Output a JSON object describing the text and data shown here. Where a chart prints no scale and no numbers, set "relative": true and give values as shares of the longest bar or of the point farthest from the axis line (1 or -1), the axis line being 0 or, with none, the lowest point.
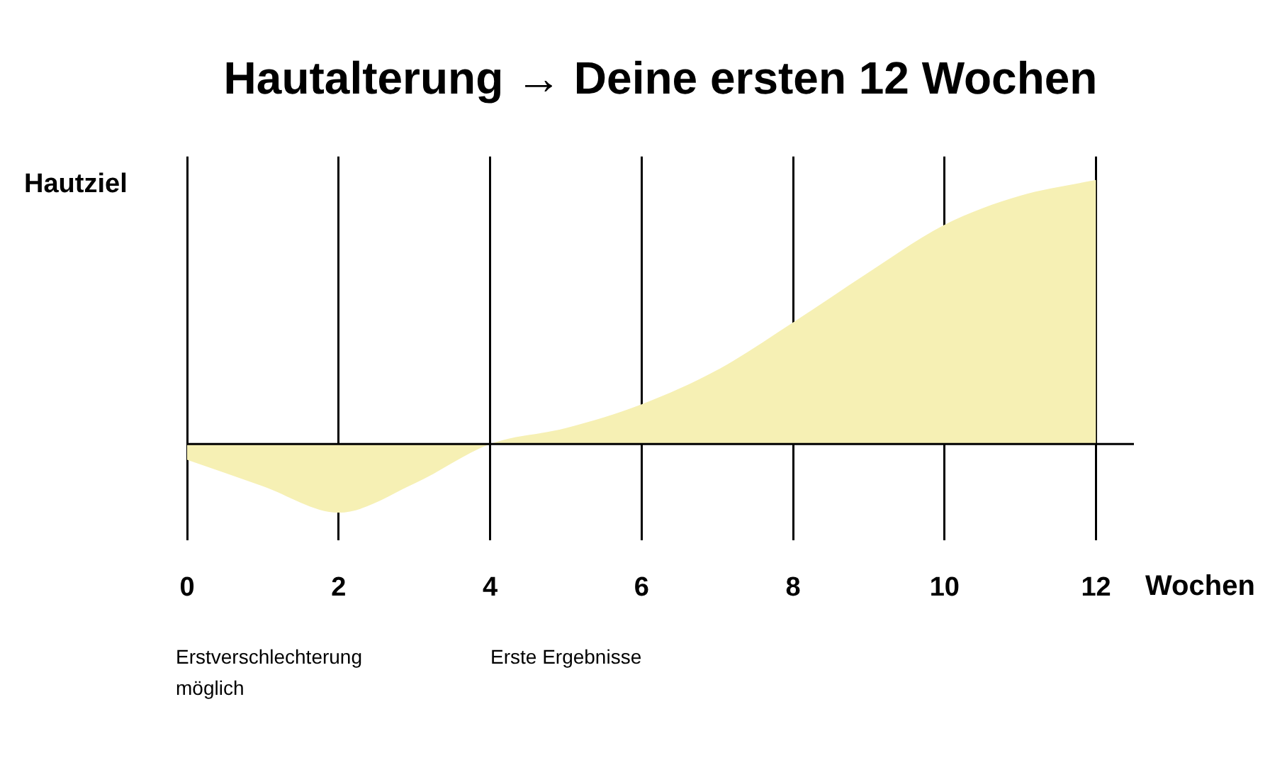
{
  "chart_data": {
    "type": "area",
    "title": "Hautalterung → Deine ersten 12 Wochen",
    "ylabel": "Hautziel",
    "xlabel": "Wochen",
    "relative": true,
    "x": [
      0,
      1,
      2,
      3,
      4,
      5,
      6,
      7,
      8,
      9,
      10,
      11,
      12
    ],
    "series": [
      {
        "color": "#f6f0b4",
        "values": [
          -0.06,
          -0.16,
          -0.26,
          -0.15,
          0,
          0.06,
          0.15,
          0.28,
          0.46,
          0.65,
          0.83,
          0.94,
          1
        ]
      }
    ],
    "xlim": [
      0,
      12.5
    ],
    "xticks": [
      0,
      2,
      4,
      6,
      8,
      10,
      12
    ],
    "grid": "x",
    "legend": false,
    "annotations": [
      "Erstverschlechterung möglich",
      "Erste Ergebnisse"
    ]
  }
}
